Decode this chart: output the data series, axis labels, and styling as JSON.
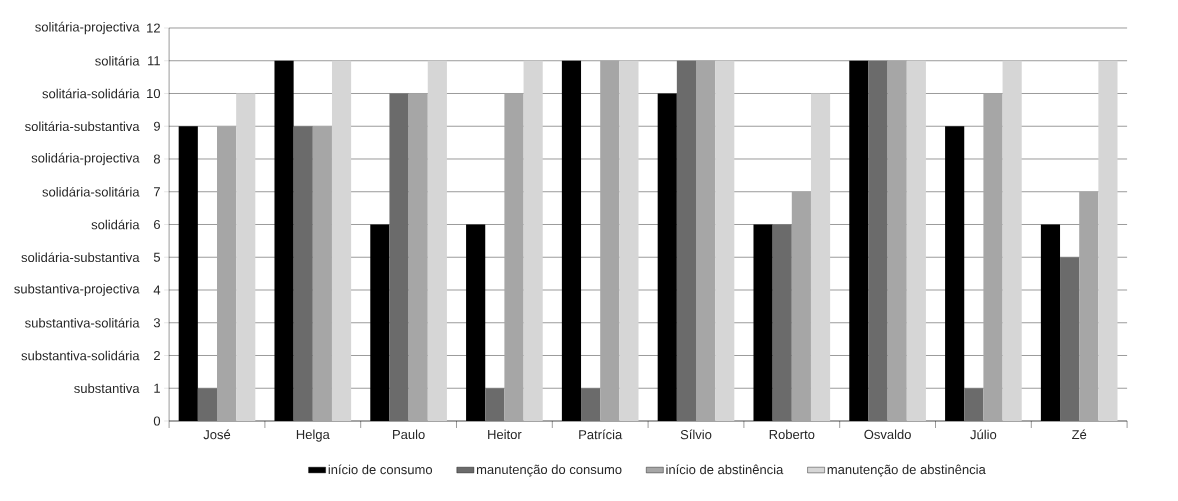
{
  "chart_data": {
    "type": "bar",
    "categories": [
      "José",
      "Helga",
      "Paulo",
      "Heitor",
      "Patrícia",
      "Sílvio",
      "Roberto",
      "Osvaldo",
      "Júlio",
      "Zé"
    ],
    "series": [
      {
        "name": "início de consumo",
        "color": "#000000",
        "values": [
          9,
          11,
          6,
          6,
          11,
          10,
          6,
          11,
          9,
          6
        ]
      },
      {
        "name": "manutenção do consumo",
        "color": "#6b6b6b",
        "values": [
          1,
          9,
          10,
          1,
          1,
          11,
          6,
          11,
          1,
          5
        ]
      },
      {
        "name": "início de abstinência",
        "color": "#a6a6a6",
        "values": [
          9,
          9,
          10,
          10,
          11,
          11,
          7,
          11,
          10,
          7
        ]
      },
      {
        "name": "manutenção de abstinência",
        "color": "#d6d6d6",
        "values": [
          10,
          11,
          11,
          11,
          11,
          11,
          10,
          11,
          11,
          11
        ]
      }
    ],
    "ylim": [
      0,
      12
    ],
    "yticks": [
      0,
      1,
      2,
      3,
      4,
      5,
      6,
      7,
      8,
      9,
      10,
      11,
      12
    ],
    "annotations": [
      "substantiva",
      "substantiva-solidária",
      "substantiva-solitária",
      "substantiva-projectiva",
      "solidária-substantiva",
      "solidária",
      "solidária-solitária",
      "solidária-projectiva",
      "solitária-substantiva",
      "solitária-solidária",
      "solitária",
      "solitária-projectiva"
    ],
    "grid": "y",
    "legend": "bottom"
  }
}
